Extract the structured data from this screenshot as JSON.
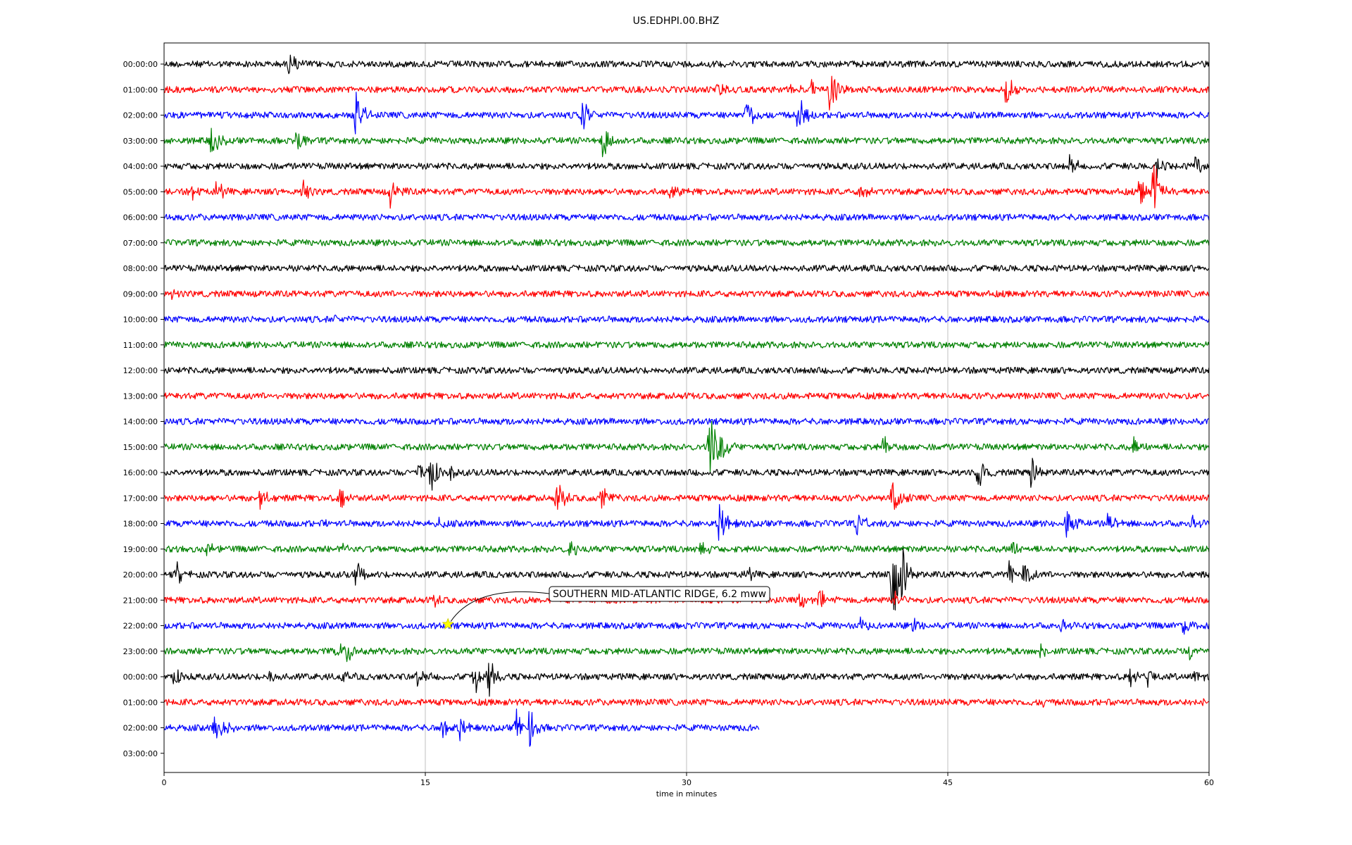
{
  "chart_data": {
    "type": "line",
    "subtype": "helicorder",
    "title": "US.EDHPI.00.BHZ",
    "xlabel": "time in minutes",
    "ylabel": "",
    "xlim": [
      0,
      60
    ],
    "x_ticks": [
      0,
      15,
      30,
      45,
      60
    ],
    "grid": "vertical",
    "trace_colors": [
      "#000000",
      "#ff0000",
      "#0000ff",
      "#008000"
    ],
    "rows": [
      {
        "label": "00:00:00",
        "end_minute": 60,
        "events": [
          {
            "t": 7.2,
            "a": 1.0
          }
        ]
      },
      {
        "label": "01:00:00",
        "end_minute": 60,
        "events": [
          {
            "t": 31.8,
            "a": 0.5
          },
          {
            "t": 36,
            "a": 0.4
          },
          {
            "t": 37.2,
            "a": 0.6
          },
          {
            "t": 38.2,
            "a": 1.8
          },
          {
            "t": 48.3,
            "a": 1.2
          }
        ]
      },
      {
        "label": "02:00:00",
        "end_minute": 60,
        "events": [
          {
            "t": 11.0,
            "a": 2.0
          },
          {
            "t": 24.0,
            "a": 1.3
          },
          {
            "t": 33.4,
            "a": 1.4
          },
          {
            "t": 36.4,
            "a": 1.5
          }
        ]
      },
      {
        "label": "03:00:00",
        "end_minute": 60,
        "events": [
          {
            "t": 2.7,
            "a": 1.1
          },
          {
            "t": 7.6,
            "a": 1.0
          },
          {
            "t": 25.2,
            "a": 1.2
          }
        ]
      },
      {
        "label": "04:00:00",
        "end_minute": 60,
        "events": [
          {
            "t": 52.0,
            "a": 0.7
          },
          {
            "t": 57,
            "a": 0.8
          },
          {
            "t": 59.2,
            "a": 0.7
          }
        ]
      },
      {
        "label": "05:00:00",
        "end_minute": 60,
        "events": [
          {
            "t": 1.5,
            "a": 0.7
          },
          {
            "t": 3.0,
            "a": 0.8
          },
          {
            "t": 8.0,
            "a": 0.8
          },
          {
            "t": 13.0,
            "a": 1.1
          },
          {
            "t": 29.0,
            "a": 0.6
          },
          {
            "t": 40.0,
            "a": 0.6
          },
          {
            "t": 56.0,
            "a": 1.0
          },
          {
            "t": 56.8,
            "a": 2.0
          }
        ]
      },
      {
        "label": "06:00:00",
        "end_minute": 60,
        "events": []
      },
      {
        "label": "07:00:00",
        "end_minute": 60,
        "events": []
      },
      {
        "label": "08:00:00",
        "end_minute": 60,
        "events": []
      },
      {
        "label": "09:00:00",
        "end_minute": 60,
        "events": [
          {
            "t": 0.5,
            "a": 0.3
          }
        ]
      },
      {
        "label": "10:00:00",
        "end_minute": 60,
        "events": [
          {
            "t": 9.7,
            "a": 0.3
          }
        ]
      },
      {
        "label": "11:00:00",
        "end_minute": 60,
        "events": []
      },
      {
        "label": "12:00:00",
        "end_minute": 60,
        "events": []
      },
      {
        "label": "13:00:00",
        "end_minute": 60,
        "events": []
      },
      {
        "label": "14:00:00",
        "end_minute": 60,
        "events": []
      },
      {
        "label": "15:00:00",
        "end_minute": 60,
        "events": [
          {
            "t": 31.3,
            "a": 2.8
          },
          {
            "t": 32.0,
            "a": 0.8
          },
          {
            "t": 41.3,
            "a": 0.7
          },
          {
            "t": 55.7,
            "a": 0.8
          }
        ]
      },
      {
        "label": "16:00:00",
        "end_minute": 60,
        "events": [
          {
            "t": 14.6,
            "a": 0.9
          },
          {
            "t": 15.3,
            "a": 1.3
          },
          {
            "t": 16.5,
            "a": 0.5
          },
          {
            "t": 46.7,
            "a": 1.1
          },
          {
            "t": 49.8,
            "a": 1.3
          }
        ]
      },
      {
        "label": "17:00:00",
        "end_minute": 60,
        "events": [
          {
            "t": 5.5,
            "a": 0.7
          },
          {
            "t": 10.1,
            "a": 0.8
          },
          {
            "t": 22.5,
            "a": 1.5
          },
          {
            "t": 25.1,
            "a": 0.8
          },
          {
            "t": 41.8,
            "a": 2.0
          }
        ]
      },
      {
        "label": "18:00:00",
        "end_minute": 60,
        "events": [
          {
            "t": 9.2,
            "a": 0.4
          },
          {
            "t": 15.8,
            "a": 0.5
          },
          {
            "t": 31.9,
            "a": 1.6
          },
          {
            "t": 39.8,
            "a": 1.1
          },
          {
            "t": 51.8,
            "a": 1.2
          },
          {
            "t": 54.2,
            "a": 0.8
          },
          {
            "t": 59.0,
            "a": 0.6
          }
        ]
      },
      {
        "label": "19:00:00",
        "end_minute": 60,
        "events": [
          {
            "t": 2.5,
            "a": 0.5
          },
          {
            "t": 10.3,
            "a": 0.5
          },
          {
            "t": 23.3,
            "a": 0.8
          },
          {
            "t": 30.8,
            "a": 0.5
          },
          {
            "t": 48.7,
            "a": 0.6
          }
        ]
      },
      {
        "label": "20:00:00",
        "end_minute": 60,
        "events": [
          {
            "t": 0.7,
            "a": 0.8
          },
          {
            "t": 11.0,
            "a": 0.9
          },
          {
            "t": 33.4,
            "a": 0.6
          },
          {
            "t": 41.8,
            "a": 4.0
          },
          {
            "t": 42.4,
            "a": 1.5
          },
          {
            "t": 48.5,
            "a": 0.9
          },
          {
            "t": 49.3,
            "a": 1.0
          }
        ]
      },
      {
        "label": "21:00:00",
        "end_minute": 60,
        "events": [
          {
            "t": 15.5,
            "a": 0.4
          },
          {
            "t": 27.8,
            "a": 0.5
          },
          {
            "t": 36.5,
            "a": 0.7
          },
          {
            "t": 37.6,
            "a": 0.8
          },
          {
            "t": 42.0,
            "a": 0.6
          }
        ]
      },
      {
        "label": "22:00:00",
        "end_minute": 60,
        "events": [
          {
            "t": 40.0,
            "a": 0.5
          },
          {
            "t": 43.0,
            "a": 0.5
          },
          {
            "t": 51.5,
            "a": 0.5
          },
          {
            "t": 58.5,
            "a": 0.8
          }
        ]
      },
      {
        "label": "23:00:00",
        "end_minute": 60,
        "events": [
          {
            "t": 9.9,
            "a": 0.6
          },
          {
            "t": 10.5,
            "a": 0.7
          },
          {
            "t": 50.3,
            "a": 0.5
          },
          {
            "t": 58.9,
            "a": 0.5
          }
        ]
      },
      {
        "label": "00:00:00",
        "end_minute": 60,
        "events": [
          {
            "t": 0.6,
            "a": 0.6
          },
          {
            "t": 6.0,
            "a": 0.5
          },
          {
            "t": 10.2,
            "a": 0.6
          },
          {
            "t": 14.5,
            "a": 0.6
          },
          {
            "t": 17.8,
            "a": 1.3
          },
          {
            "t": 18.6,
            "a": 1.3
          },
          {
            "t": 55.5,
            "a": 0.7
          },
          {
            "t": 56.5,
            "a": 0.6
          },
          {
            "t": 59.2,
            "a": 0.4
          }
        ]
      },
      {
        "label": "01:00:00",
        "end_minute": 60,
        "events": [
          {
            "t": 50.5,
            "a": 0.3
          },
          {
            "t": 59.5,
            "a": 0.6
          }
        ]
      },
      {
        "label": "02:00:00",
        "end_minute": 34.2,
        "events": [
          {
            "t": 2.9,
            "a": 1.2
          },
          {
            "t": 3.4,
            "a": 0.5
          },
          {
            "t": 16.0,
            "a": 0.7
          },
          {
            "t": 17.0,
            "a": 0.7
          },
          {
            "t": 20.2,
            "a": 1.3
          },
          {
            "t": 21.0,
            "a": 1.2
          }
        ]
      },
      {
        "label": "03:00:00",
        "end_minute": 0,
        "events": []
      }
    ],
    "annotation": {
      "text": "SOUTHERN MID-ATLANTIC RIDGE, 6.2 mww",
      "event_row": 22,
      "event_minute": 16.3,
      "marker": "star",
      "marker_color": "#ffff00"
    }
  }
}
